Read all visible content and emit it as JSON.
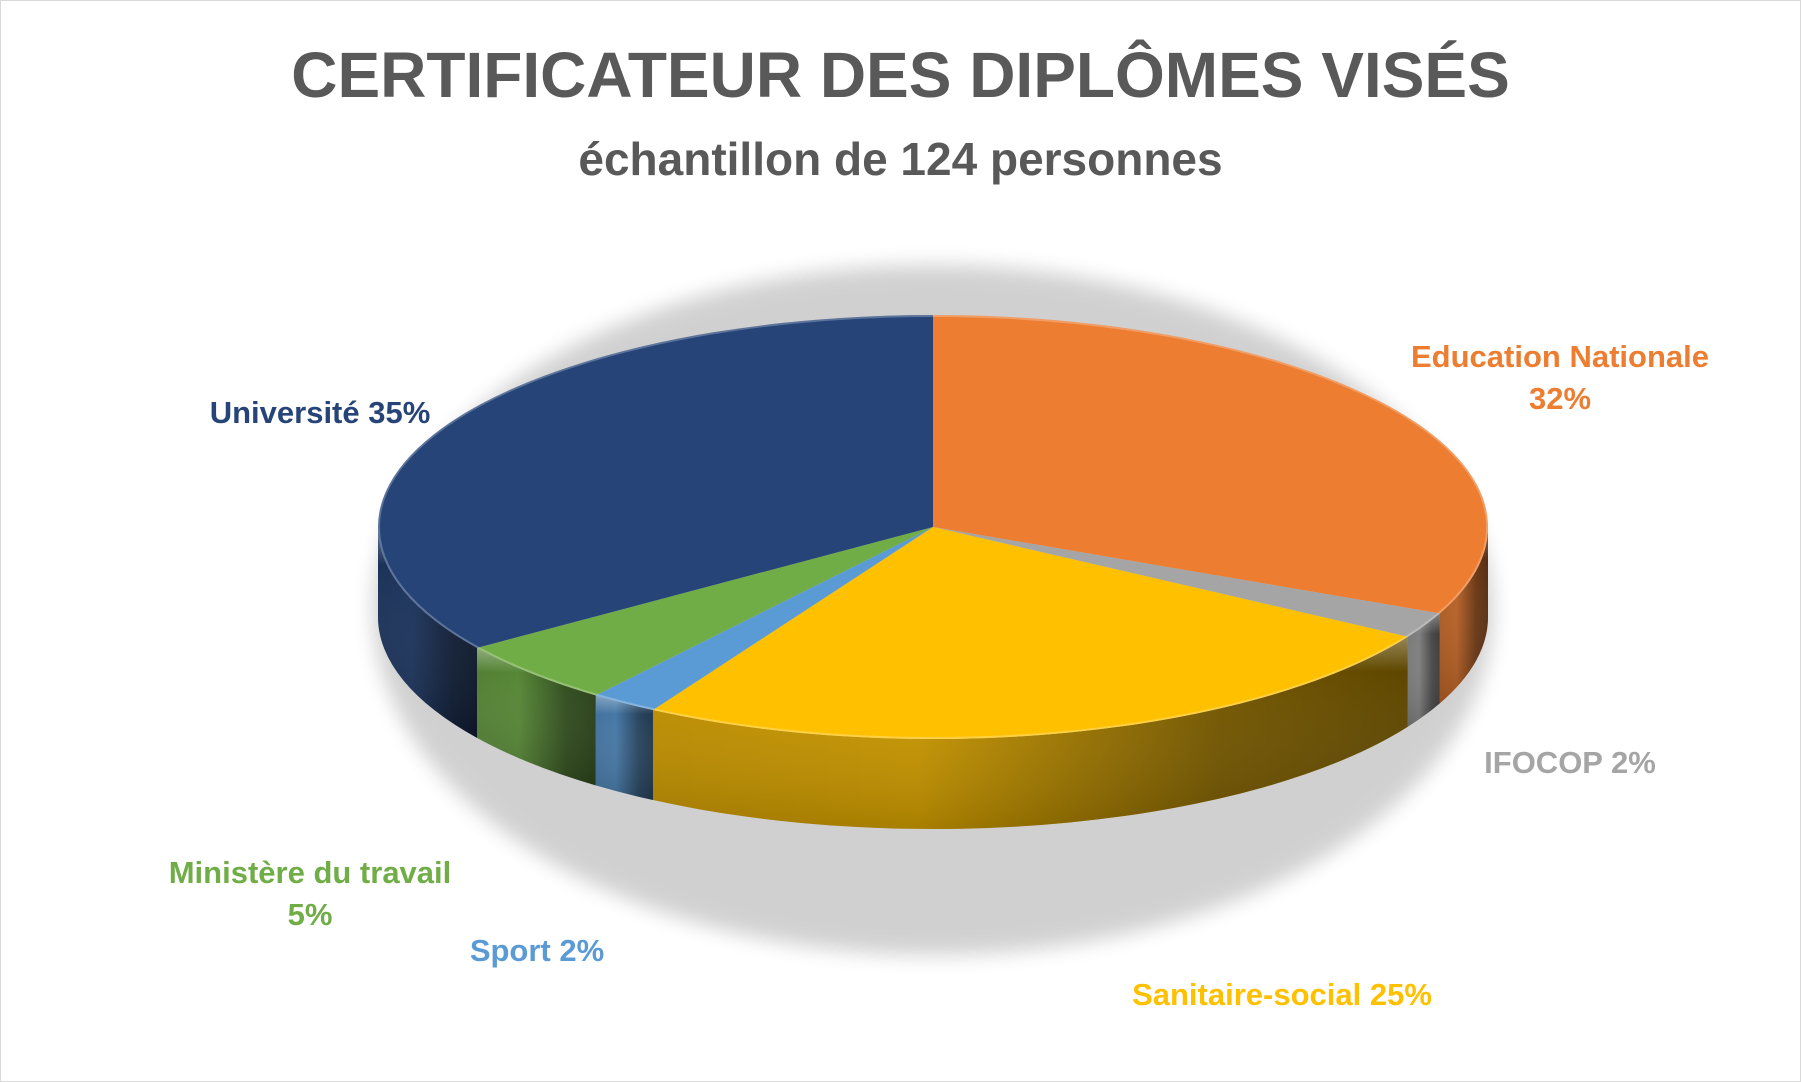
{
  "chart_data": {
    "type": "pie",
    "title": "CERTIFICATEUR DES DIPLÔMES VISÉS",
    "subtitle": "échantillon de 124 personnes",
    "slices": [
      {
        "name": "Education Nationale",
        "value": 32,
        "label_line1": "Education Nationale",
        "label_line2": "32%",
        "color": "#ED7D31"
      },
      {
        "name": "IFOCOP",
        "value": 2,
        "label_line1": "IFOCOP 2%",
        "color": "#A5A5A5"
      },
      {
        "name": "Sanitaire-social",
        "value": 25,
        "label_line1": "Sanitaire-social 25%",
        "color": "#FFC000"
      },
      {
        "name": "Sport",
        "value": 2,
        "label_line1": "Sport 2%",
        "color": "#5B9BD5"
      },
      {
        "name": "Ministère du travail",
        "value": 5,
        "label_line1": "Ministère du travail",
        "label_line2": "5%",
        "color": "#70AD47"
      },
      {
        "name": "Université",
        "value": 35,
        "label_line1": "Université 35%",
        "color": "#264478"
      }
    ],
    "legend": "none",
    "style": "3d"
  }
}
